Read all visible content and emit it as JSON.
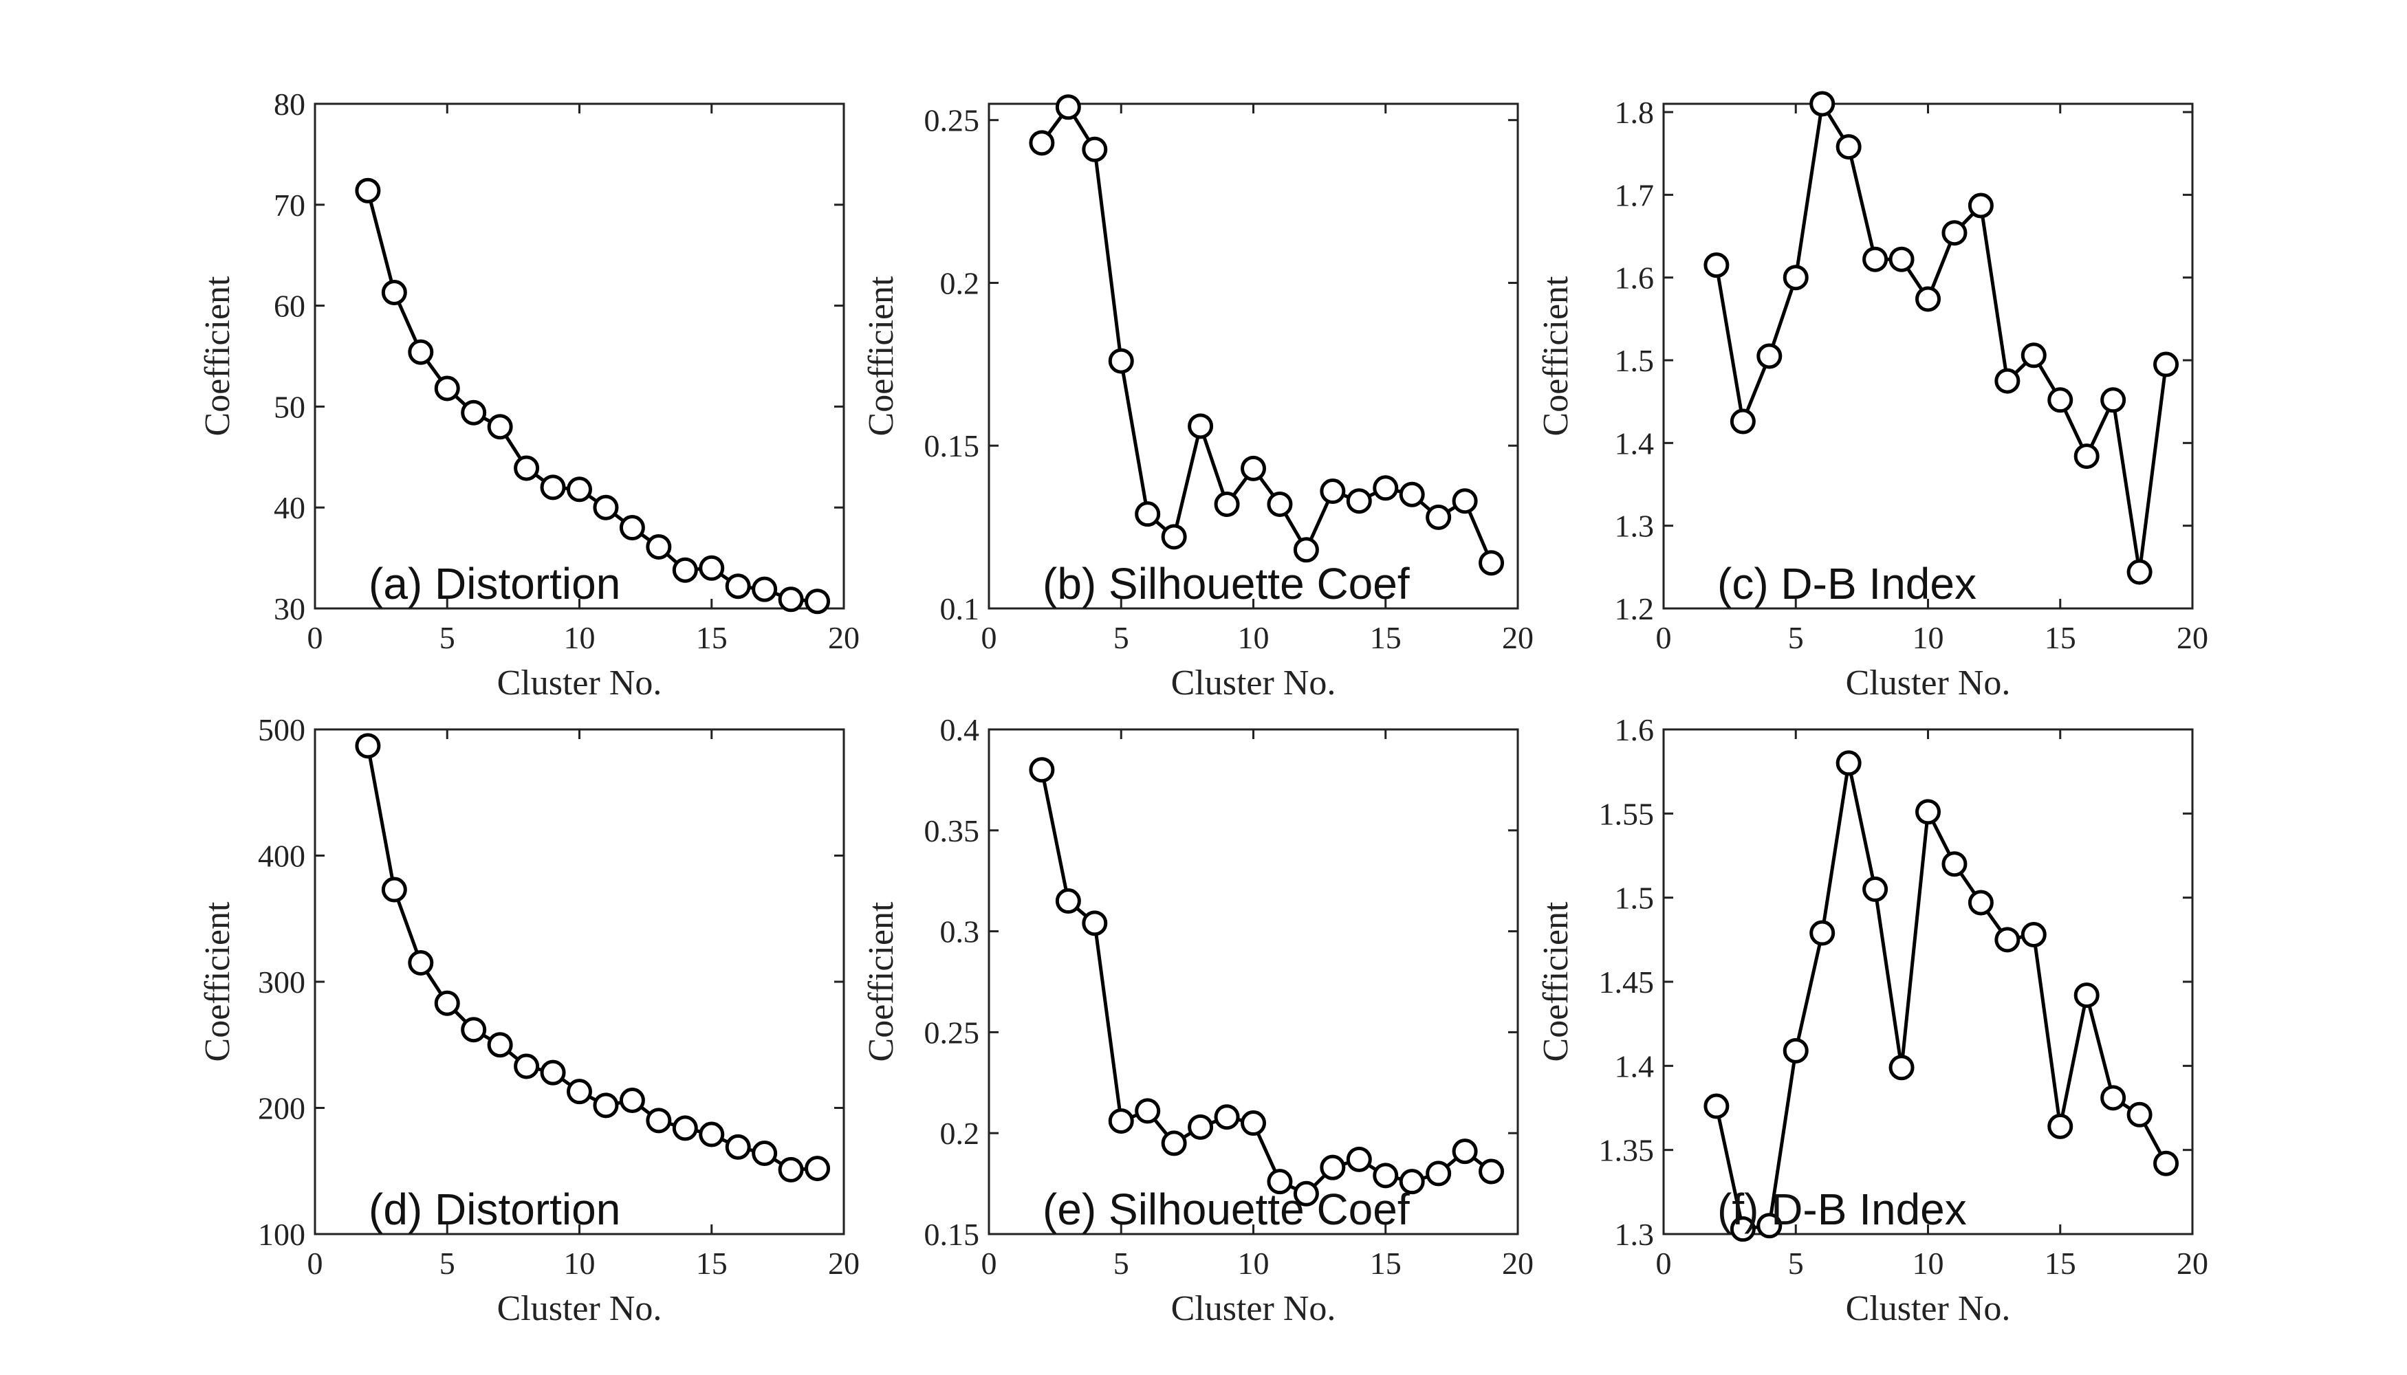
{
  "chart_data": [
    {
      "type": "line",
      "annotation": "(a) Distortion",
      "xlabel": "Cluster No.",
      "ylabel": "Coefficient",
      "xlim": [
        0,
        20
      ],
      "ylim": [
        30,
        80
      ],
      "xticks": [
        "0",
        "5",
        "10",
        "15",
        "20"
      ],
      "yticks": [
        "30",
        "40",
        "50",
        "60",
        "70",
        "80"
      ],
      "x": [
        2,
        3,
        4,
        5,
        6,
        7,
        8,
        9,
        10,
        11,
        12,
        13,
        14,
        15,
        16,
        17,
        18,
        19
      ],
      "y": [
        71.4,
        61.3,
        55.4,
        51.8,
        49.4,
        48.0,
        43.9,
        42.0,
        41.8,
        40.0,
        38.0,
        36.1,
        33.8,
        34.0,
        32.2,
        31.9,
        30.9,
        30.7
      ],
      "grid": false,
      "color": "#000000"
    },
    {
      "type": "line",
      "annotation": "(b) Silhouette Coef",
      "xlabel": "Cluster No.",
      "ylabel": "Coefficient",
      "xlim": [
        0,
        20
      ],
      "ylim": [
        0.1,
        0.255
      ],
      "xticks": [
        "0",
        "5",
        "10",
        "15",
        "20"
      ],
      "yticks": [
        "0.1",
        "0.15",
        "0.2",
        "0.25"
      ],
      "x": [
        2,
        3,
        4,
        5,
        6,
        7,
        8,
        9,
        10,
        11,
        12,
        13,
        14,
        15,
        16,
        17,
        18,
        19
      ],
      "y": [
        0.243,
        0.254,
        0.241,
        0.176,
        0.129,
        0.122,
        0.156,
        0.132,
        0.143,
        0.132,
        0.118,
        0.136,
        0.133,
        0.137,
        0.135,
        0.128,
        0.133,
        0.114
      ],
      "grid": false,
      "color": "#000000"
    },
    {
      "type": "line",
      "annotation": "(c) D-B Index",
      "xlabel": "Cluster No.",
      "ylabel": "Coefficient",
      "xlim": [
        0,
        20
      ],
      "ylim": [
        1.2,
        1.81
      ],
      "xticks": [
        "0",
        "5",
        "10",
        "15",
        "20"
      ],
      "yticks": [
        "1.2",
        "1.3",
        "1.4",
        "1.5",
        "1.6",
        "1.7",
        "1.8"
      ],
      "x": [
        2,
        3,
        4,
        5,
        6,
        7,
        8,
        9,
        10,
        11,
        12,
        13,
        14,
        15,
        16,
        17,
        18,
        19
      ],
      "y": [
        1.615,
        1.426,
        1.505,
        1.6,
        1.81,
        1.758,
        1.622,
        1.622,
        1.574,
        1.654,
        1.687,
        1.475,
        1.506,
        1.452,
        1.384,
        1.452,
        1.244,
        1.495
      ],
      "grid": false,
      "color": "#000000"
    },
    {
      "type": "line",
      "annotation": "(d) Distortion",
      "xlabel": "Cluster No.",
      "ylabel": "Coefficient",
      "xlim": [
        0,
        20
      ],
      "ylim": [
        100,
        500
      ],
      "xticks": [
        "0",
        "5",
        "10",
        "15",
        "20"
      ],
      "yticks": [
        "100",
        "200",
        "300",
        "400",
        "500"
      ],
      "x": [
        2,
        3,
        4,
        5,
        6,
        7,
        8,
        9,
        10,
        11,
        12,
        13,
        14,
        15,
        16,
        17,
        18,
        19
      ],
      "y": [
        487,
        373,
        315,
        283,
        262,
        250,
        233,
        228,
        213,
        202,
        206,
        190,
        184,
        179,
        169,
        164,
        151,
        152
      ],
      "grid": false,
      "color": "#000000"
    },
    {
      "type": "line",
      "annotation": "(e) Silhouette Coef",
      "xlabel": "Cluster No.",
      "ylabel": "Coefficient",
      "xlim": [
        0,
        20
      ],
      "ylim": [
        0.15,
        0.4
      ],
      "xticks": [
        "0",
        "5",
        "10",
        "15",
        "20"
      ],
      "yticks": [
        "0.15",
        "0.2",
        "0.25",
        "0.3",
        "0.35",
        "0.4"
      ],
      "x": [
        2,
        3,
        4,
        5,
        6,
        7,
        8,
        9,
        10,
        11,
        12,
        13,
        14,
        15,
        16,
        17,
        18,
        19
      ],
      "y": [
        0.38,
        0.315,
        0.304,
        0.206,
        0.211,
        0.195,
        0.203,
        0.208,
        0.205,
        0.176,
        0.17,
        0.183,
        0.187,
        0.179,
        0.176,
        0.18,
        0.191,
        0.181
      ],
      "grid": false,
      "color": "#000000"
    },
    {
      "type": "line",
      "annotation": "(f) D-B Index",
      "xlabel": "Cluster No.",
      "ylabel": "Coefficient",
      "xlim": [
        0,
        20
      ],
      "ylim": [
        1.3,
        1.6
      ],
      "xticks": [
        "0",
        "5",
        "10",
        "15",
        "20"
      ],
      "yticks": [
        "1.3",
        "1.35",
        "1.4",
        "1.45",
        "1.5",
        "1.55",
        "1.6"
      ],
      "x": [
        2,
        3,
        4,
        5,
        6,
        7,
        8,
        9,
        10,
        11,
        12,
        13,
        14,
        15,
        16,
        17,
        18,
        19
      ],
      "y": [
        1.376,
        1.303,
        1.305,
        1.409,
        1.479,
        1.58,
        1.505,
        1.399,
        1.551,
        1.52,
        1.497,
        1.475,
        1.478,
        1.364,
        1.442,
        1.381,
        1.371,
        1.342
      ],
      "grid": false,
      "color": "#000000"
    }
  ]
}
